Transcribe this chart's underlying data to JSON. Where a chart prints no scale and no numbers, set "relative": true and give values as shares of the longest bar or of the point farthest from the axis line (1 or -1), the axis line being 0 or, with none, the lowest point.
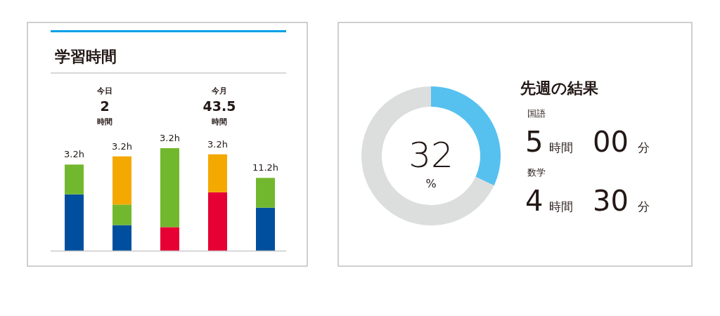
{
  "chart_data": [
    {
      "type": "bar",
      "title": "学習時間",
      "categories": [
        null,
        null,
        null,
        null,
        null
      ],
      "stacked": true,
      "relative": true,
      "series": [
        {
          "color": "#004f9f",
          "values": [
            0.55,
            0.25,
            null,
            null,
            0.42
          ]
        },
        {
          "color": "#e60033",
          "values": [
            null,
            null,
            0.23,
            0.57,
            null
          ]
        },
        {
          "color": "#72b82e",
          "values": [
            0.29,
            0.2,
            0.77,
            null,
            0.29
          ]
        },
        {
          "color": "#f4a900",
          "values": [
            null,
            0.47,
            null,
            0.37,
            null
          ]
        }
      ],
      "annotations": [
        "今日",
        "2",
        "時間",
        "今月",
        "43.5",
        "時間",
        "3.2h",
        "3.2h",
        "3.2h",
        "3.2h",
        "11.2h"
      ]
    },
    {
      "type": "donut",
      "categories": [
        null,
        null
      ],
      "values": [
        32,
        68
      ],
      "colors": [
        "#56c1ef",
        "#dcdddd"
      ],
      "value_labels": [
        "32",
        null
      ],
      "annotations": [
        "%"
      ]
    },
    {
      "type": "other",
      "title": "先週の結果",
      "annotations": [
        "国語",
        "5",
        "時間",
        "00",
        "分",
        "数学",
        "4",
        "時間",
        "30",
        "分"
      ]
    }
  ]
}
